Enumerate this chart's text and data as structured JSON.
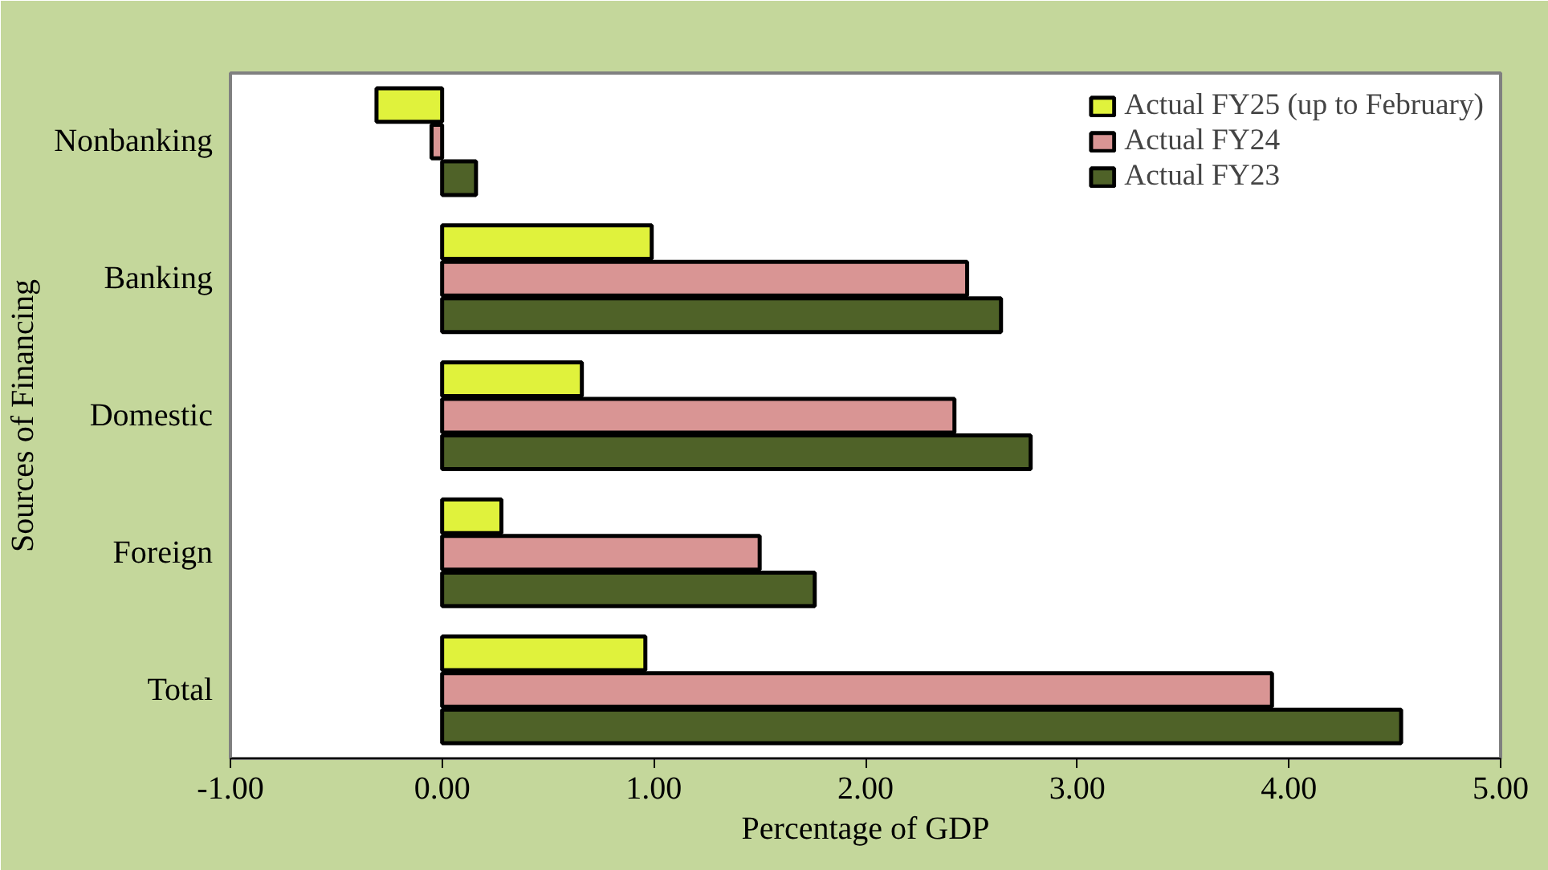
{
  "chart_data": {
    "type": "bar",
    "orientation": "horizontal",
    "xlabel": "Percentage of GDP",
    "ylabel": "Sources of Financing",
    "categories": [
      "Nonbanking",
      "Banking",
      "Domestic",
      "Foreign",
      "Total"
    ],
    "series": [
      {
        "name": "Actual FY25 (up to February)",
        "color": "#e0f23c",
        "values": [
          -0.31,
          0.99,
          0.66,
          0.28,
          0.96
        ]
      },
      {
        "name": "Actual FY24",
        "color": "#d99594",
        "values": [
          -0.05,
          2.48,
          2.42,
          1.5,
          3.92
        ]
      },
      {
        "name": "Actual FY23",
        "color": "#4f6228",
        "values": [
          0.16,
          2.64,
          2.78,
          1.76,
          4.53
        ]
      }
    ],
    "xlim": [
      -1,
      5
    ],
    "xticks": [
      {
        "value": -1,
        "label": "-1.00"
      },
      {
        "value": 0,
        "label": "0.00"
      },
      {
        "value": 1,
        "label": "1.00"
      },
      {
        "value": 2,
        "label": "2.00"
      },
      {
        "value": 3,
        "label": "3.00"
      },
      {
        "value": 4,
        "label": "4.00"
      },
      {
        "value": 5,
        "label": "5.00"
      }
    ],
    "grid": false,
    "legend": "top right"
  }
}
